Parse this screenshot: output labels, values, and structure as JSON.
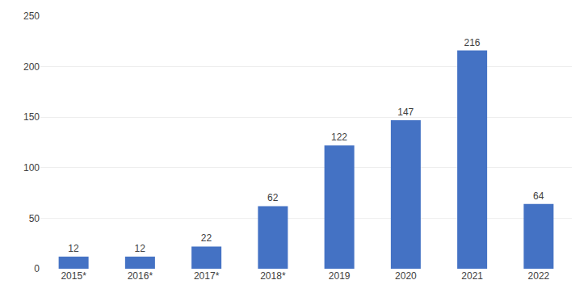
{
  "chart_data": {
    "type": "bar",
    "categories": [
      "2015*",
      "2016*",
      "2017*",
      "2018*",
      "2019",
      "2020",
      "2021",
      "2022"
    ],
    "values": [
      12,
      12,
      22,
      62,
      122,
      147,
      216,
      64
    ],
    "color": "#4472C4",
    "ylim": [
      0,
      250
    ],
    "yticks": [
      0,
      50,
      100,
      150,
      200,
      250
    ],
    "grid": true,
    "data_labels": true
  }
}
